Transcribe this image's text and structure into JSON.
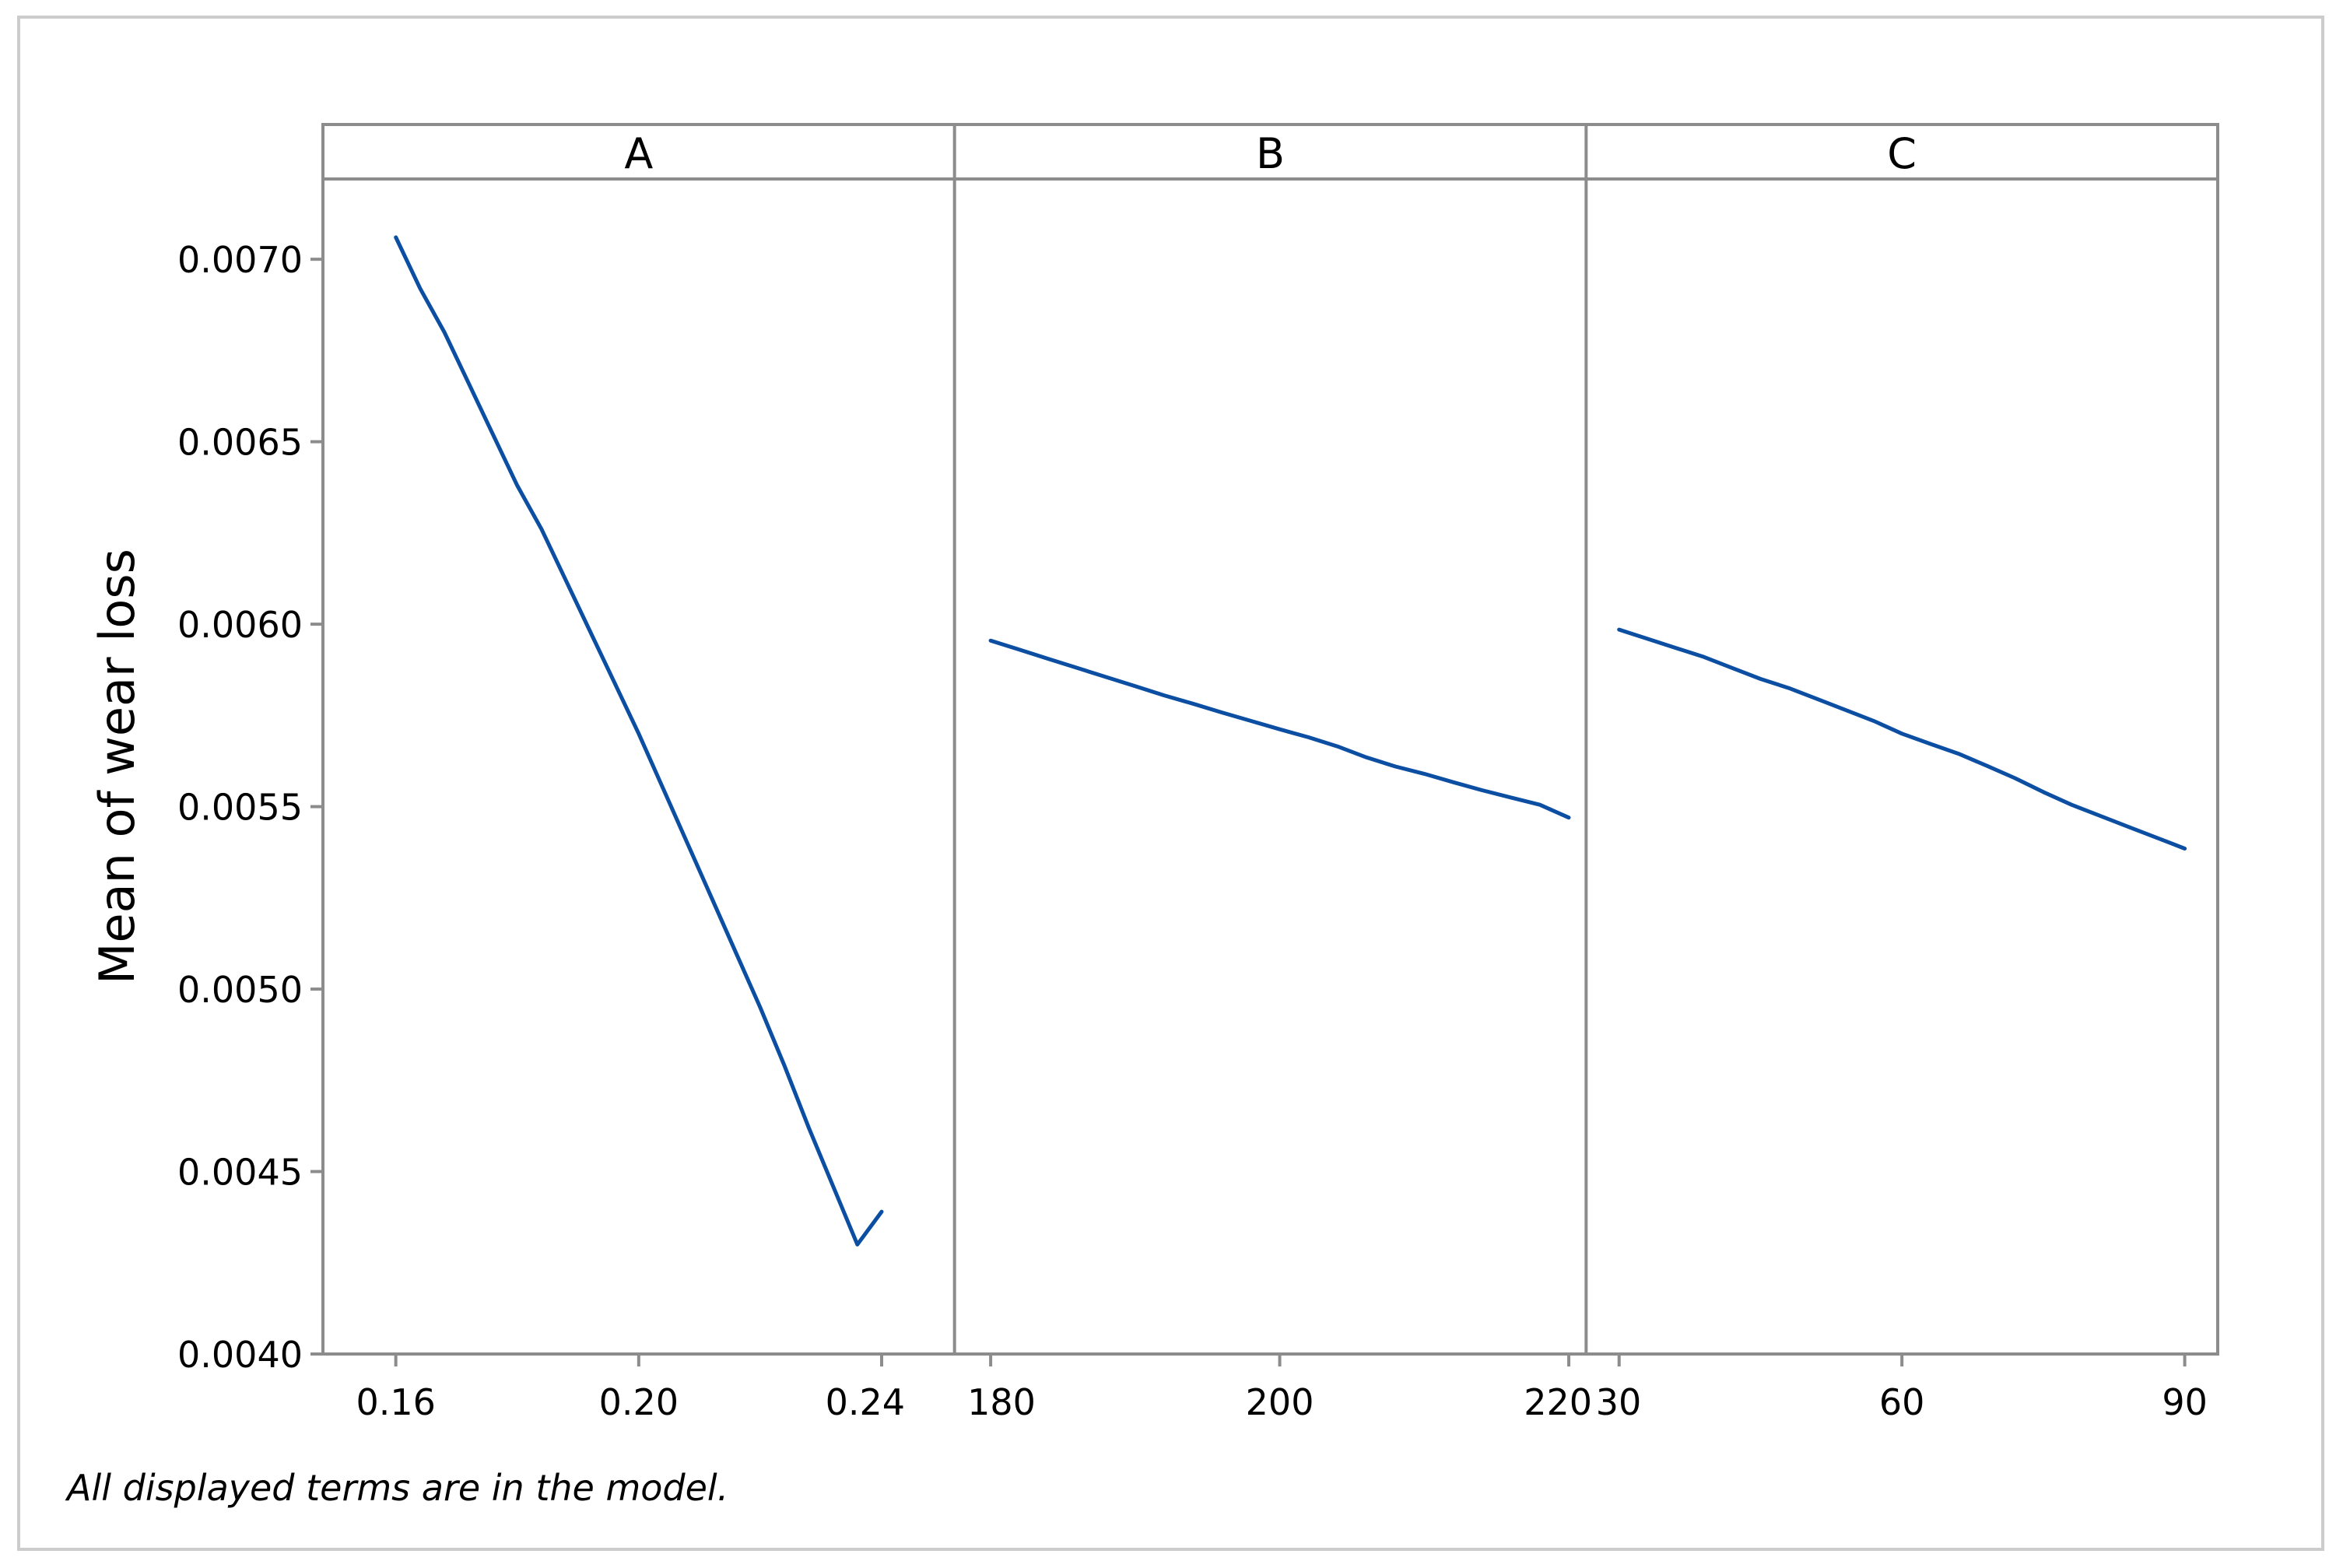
{
  "footnote": "All displayed terms are in the model.",
  "chart_data": {
    "type": "line",
    "ylabel": "Mean of wear loss",
    "ylim": [
      0.004,
      0.00722
    ],
    "yticks": [
      "0.0040",
      "0.0045",
      "0.0050",
      "0.0055",
      "0.0060",
      "0.0065",
      "0.0070"
    ],
    "line_color": "#0b4ea2",
    "grid": false,
    "panels": [
      {
        "name": "A",
        "xlim": [
          0.148,
          0.252
        ],
        "xticks": [
          "0.16",
          "0.20",
          "0.24"
        ],
        "x": [
          0.16,
          0.164,
          0.168,
          0.172,
          0.176,
          0.18,
          0.184,
          0.188,
          0.192,
          0.196,
          0.2,
          0.204,
          0.208,
          0.212,
          0.216,
          0.22,
          0.224,
          0.228,
          0.232,
          0.236,
          0.24
        ],
        "y": [
          0.00706,
          0.00692,
          0.0068,
          0.00666,
          0.00652,
          0.00638,
          0.00626,
          0.00612,
          0.00598,
          0.00584,
          0.0057,
          0.00555,
          0.0054,
          0.00525,
          0.0051,
          0.00495,
          0.00479,
          0.00462,
          0.00446,
          0.0043,
          0.00439
        ]
      },
      {
        "name": "B",
        "xlim": [
          177.5,
          221.2
        ],
        "xticks": [
          "180",
          "200",
          "220"
        ],
        "x": [
          180,
          182,
          184,
          186,
          188,
          190,
          192,
          194,
          196,
          198,
          200,
          202,
          204,
          206,
          208,
          210,
          212,
          214,
          216,
          218,
          220
        ],
        "y": [
          0.005955,
          0.00593,
          0.005905,
          0.00588,
          0.005855,
          0.00583,
          0.005805,
          0.005782,
          0.005758,
          0.005735,
          0.005712,
          0.00569,
          0.005665,
          0.005635,
          0.00561,
          0.00559,
          0.005567,
          0.005545,
          0.005525,
          0.005505,
          0.00547
        ]
      },
      {
        "name": "C",
        "xlim": [
          26.5,
          93.5
        ],
        "xticks": [
          "30",
          "60",
          "90"
        ],
        "x": [
          30,
          33,
          36,
          39,
          42,
          45,
          48,
          51,
          54,
          57,
          60,
          63,
          66,
          69,
          72,
          75,
          78,
          81,
          84,
          87,
          90
        ],
        "y": [
          0.005985,
          0.00596,
          0.005935,
          0.00591,
          0.00588,
          0.00585,
          0.005825,
          0.005795,
          0.005765,
          0.005735,
          0.0057,
          0.005672,
          0.005645,
          0.005612,
          0.005578,
          0.00554,
          0.005505,
          0.005475,
          0.005445,
          0.005415,
          0.005385
        ]
      }
    ]
  }
}
